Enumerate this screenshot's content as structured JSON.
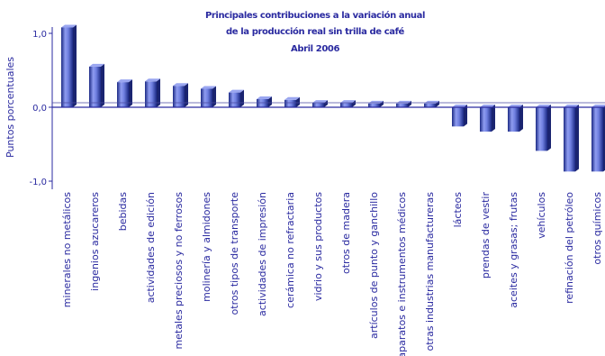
{
  "chart_data": {
    "type": "bar",
    "title_lines": [
      "Principales contribuciones a la variación anual",
      "de la producción real sin trilla de café",
      "Abril 2006"
    ],
    "ylabel": "Puntos porcentuales",
    "ylim": [
      -1.0,
      1.0
    ],
    "yticks": [
      "1,0",
      "0,0",
      "-1,0"
    ],
    "ytick_values": [
      1.0,
      0.0,
      -1.0
    ],
    "grid": false,
    "legend": "none",
    "bar_color": "#3a4cc0",
    "categories": [
      "minerales no metálicos",
      "ingenios azucareros",
      "bebidas",
      "actividades de edición",
      "metales preciosos y  no ferrosos",
      "molinería y almidones",
      "otros tipos de transporte",
      "actividades de impresión",
      "cerámica no refractaria",
      "vidrio y sus productos",
      "otros de madera",
      "artículos de punto y ganchillo",
      "aparatos e instrumentos médicos",
      "otras industrias manufactureras",
      "lácteos",
      "prendas de vestir",
      "aceites y grasas; frutas",
      "vehículos",
      "refinación del petróleo",
      "otros químicos"
    ],
    "values": [
      1.08,
      0.55,
      0.34,
      0.35,
      0.29,
      0.25,
      0.2,
      0.11,
      0.1,
      0.06,
      0.06,
      0.05,
      0.05,
      0.05,
      -0.26,
      -0.33,
      -0.33,
      -0.59,
      -0.87,
      -0.87
    ]
  }
}
